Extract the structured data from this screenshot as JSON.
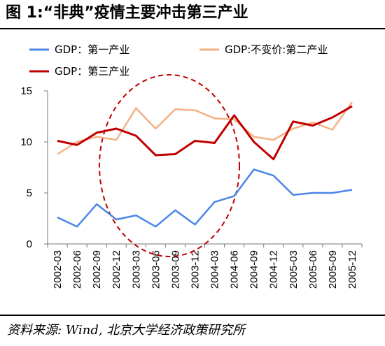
{
  "header": {
    "title": "图 1:“非典”疫情主要冲击第三产业"
  },
  "footer": {
    "source": "资料来源: Wind, 北京大学经济政策研究所"
  },
  "chart_data": {
    "type": "line",
    "categories": [
      "2002-03",
      "2002-06",
      "2002-09",
      "2002-12",
      "2003-03",
      "2003-06",
      "2003-09",
      "2003-12",
      "2004-03",
      "2004-06",
      "2004-09",
      "2004-12",
      "2005-03",
      "2005-06",
      "2005-09",
      "2005-12"
    ],
    "ylim": [
      0,
      15
    ],
    "yticks": [
      0,
      5,
      10,
      15
    ],
    "grid": false,
    "legend_placement": "top",
    "series": [
      {
        "name": "GDP：第一产业",
        "color": "#4a86e8",
        "values": [
          2.6,
          1.7,
          3.9,
          2.4,
          2.8,
          1.7,
          3.3,
          1.9,
          4.1,
          4.7,
          7.3,
          6.7,
          4.8,
          5.0,
          5.0,
          5.3
        ]
      },
      {
        "name": "GDP:不变价:第二产业",
        "color": "#f4b183",
        "values": [
          8.8,
          10.0,
          10.5,
          10.2,
          13.3,
          11.3,
          13.2,
          13.1,
          12.3,
          12.2,
          10.5,
          10.2,
          11.3,
          11.9,
          11.2,
          13.9
        ]
      },
      {
        "name": "GDP：第三产业",
        "color": "#c00000",
        "values": [
          10.1,
          9.7,
          10.9,
          11.3,
          10.6,
          8.7,
          8.8,
          10.1,
          9.9,
          12.6,
          10.0,
          8.3,
          12.0,
          11.6,
          12.4,
          13.5
        ]
      }
    ],
    "annotation": {
      "kind": "dashed-ellipse",
      "color": "#c00000",
      "spans_categories": [
        "2002-12",
        "2004-06"
      ]
    }
  }
}
